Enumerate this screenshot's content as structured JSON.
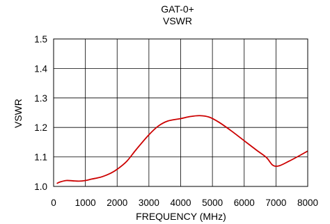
{
  "chart_data": {
    "type": "line",
    "title": "GAT-0+",
    "subtitle": "VSWR",
    "xlabel": "FREQUENCY (MHz)",
    "ylabel": "VSWR",
    "xlim": [
      0,
      8000
    ],
    "ylim": [
      1.0,
      1.5
    ],
    "x_ticks": [
      0,
      1000,
      2000,
      3000,
      4000,
      5000,
      6000,
      7000,
      8000
    ],
    "x_tick_labels": [
      "0",
      "1000",
      "2000",
      "3000",
      "4000",
      "5000",
      "6000",
      "7000",
      "8000"
    ],
    "y_ticks": [
      1.0,
      1.1,
      1.2,
      1.3,
      1.4,
      1.5
    ],
    "y_tick_labels": [
      "1.0",
      "1.1",
      "1.2",
      "1.3",
      "1.4",
      "1.5"
    ],
    "grid": true,
    "series": [
      {
        "color": "#cc0000",
        "x": [
          100,
          200,
          400,
          600,
          800,
          1000,
          1200,
          1500,
          1800,
          2000,
          2300,
          2600,
          3000,
          3300,
          3600,
          4000,
          4300,
          4600,
          4900,
          5200,
          5600,
          6000,
          6400,
          6700,
          6900,
          7100,
          7400,
          7700,
          8000
        ],
        "y": [
          1.01,
          1.015,
          1.02,
          1.019,
          1.018,
          1.02,
          1.025,
          1.032,
          1.045,
          1.058,
          1.085,
          1.125,
          1.175,
          1.205,
          1.222,
          1.23,
          1.237,
          1.24,
          1.235,
          1.218,
          1.188,
          1.155,
          1.122,
          1.098,
          1.072,
          1.07,
          1.085,
          1.102,
          1.12
        ]
      }
    ]
  }
}
